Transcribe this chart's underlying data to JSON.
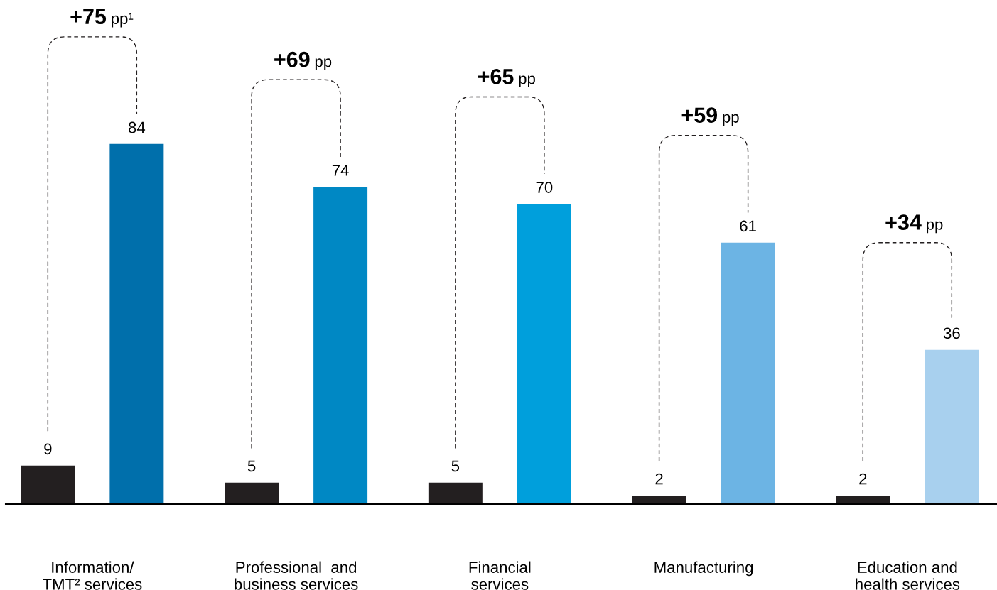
{
  "chart_data": {
    "type": "bar",
    "categories": [
      "Information/\nTMT² services",
      "Professional  and\nbusiness services",
      "Financial\nservices",
      "Manufacturing",
      "Education and\nhealth services"
    ],
    "series": [
      {
        "color": "#231f20",
        "values": [
          9,
          5,
          5,
          2,
          2
        ]
      },
      {
        "colors": [
          "#006fab",
          "#0088c4",
          "#009fdc",
          "#6cb4e4",
          "#a8d0ee"
        ],
        "values": [
          84,
          74,
          70,
          61,
          36
        ]
      }
    ],
    "data_labels": true,
    "annotations": [
      "+75 pp¹",
      "+69 pp",
      "+65 pp",
      "+59 pp",
      "+34 pp"
    ]
  }
}
